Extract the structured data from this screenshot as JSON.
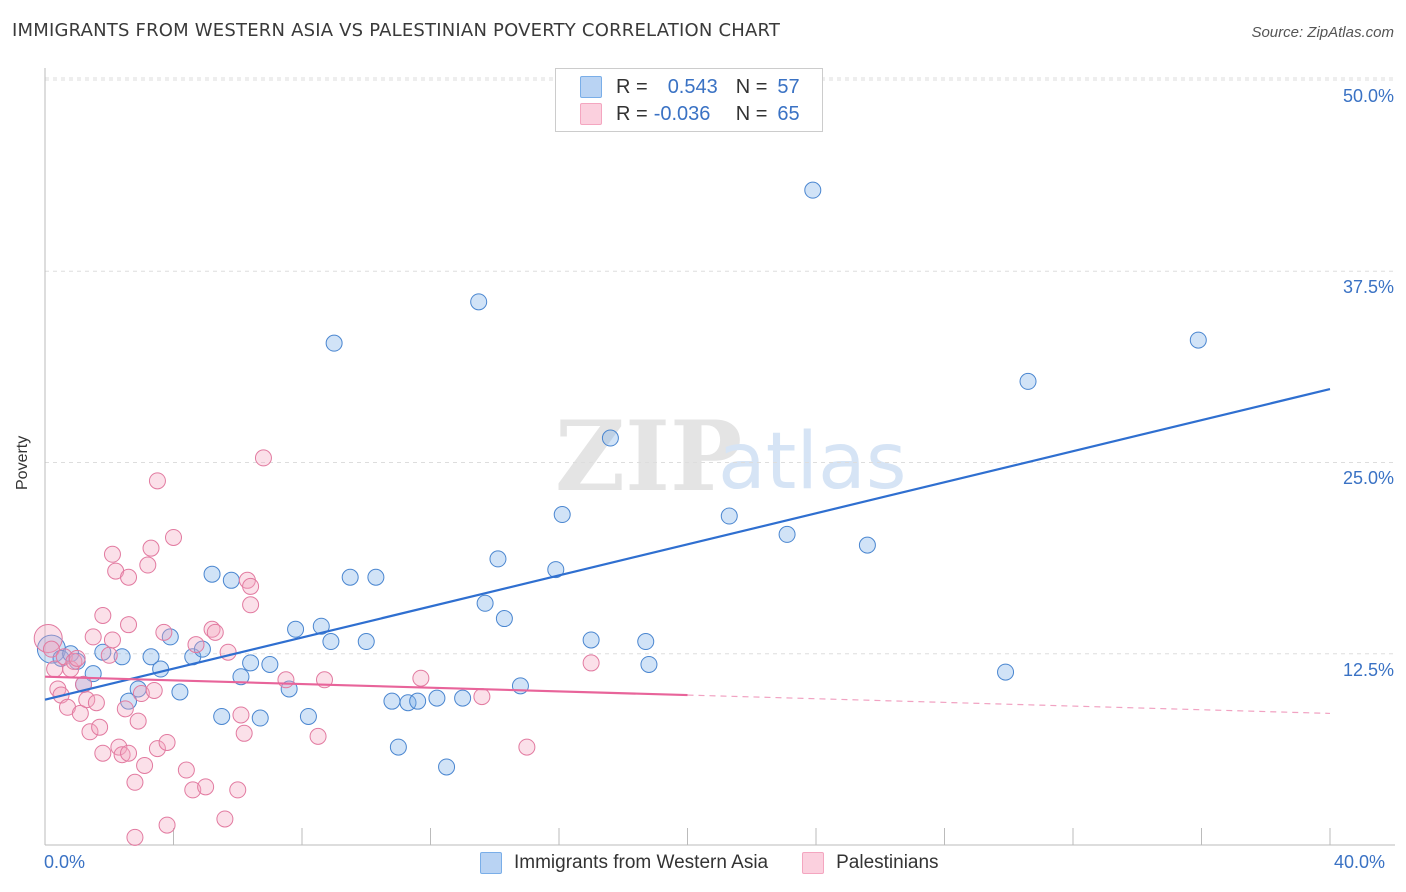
{
  "chart_data": {
    "type": "scatter",
    "title": "IMMIGRANTS FROM WESTERN ASIA VS PALESTINIAN POVERTY CORRELATION CHART",
    "source": "Source: ZipAtlas.com",
    "ylabel": "Poverty",
    "xlim": [
      0,
      40
    ],
    "ylim": [
      0,
      50
    ],
    "x_tick_labels": [
      "0.0%",
      "40.0%"
    ],
    "y_tick_labels": [
      "12.5%",
      "25.0%",
      "37.5%",
      "50.0%"
    ],
    "y_tick_values": [
      12.5,
      25.0,
      37.5,
      50.0
    ],
    "watermark": "ZIPatlas",
    "series": [
      {
        "name": "Immigrants from Western Asia",
        "color": "#7aaee8",
        "stroke": "#4a86d0",
        "line_color": "#2f6fd0",
        "R": "0.543",
        "N": "57",
        "trend": {
          "x": [
            0,
            40
          ],
          "y": [
            9.5,
            29.8
          ]
        },
        "points": [
          [
            0.2,
            12.8
          ],
          [
            0.5,
            12.2
          ],
          [
            0.8,
            12.5
          ],
          [
            1.0,
            12.0
          ],
          [
            1.2,
            10.5
          ],
          [
            1.5,
            11.2
          ],
          [
            1.8,
            12.6
          ],
          [
            2.4,
            12.3
          ],
          [
            2.6,
            9.4
          ],
          [
            2.9,
            10.2
          ],
          [
            3.3,
            12.3
          ],
          [
            3.6,
            11.5
          ],
          [
            3.9,
            13.6
          ],
          [
            4.2,
            10.0
          ],
          [
            4.6,
            12.3
          ],
          [
            4.9,
            12.8
          ],
          [
            5.2,
            17.7
          ],
          [
            5.5,
            8.4
          ],
          [
            5.8,
            17.3
          ],
          [
            6.1,
            11.0
          ],
          [
            6.4,
            11.9
          ],
          [
            6.7,
            8.3
          ],
          [
            7.0,
            11.8
          ],
          [
            7.6,
            10.2
          ],
          [
            7.8,
            14.1
          ],
          [
            8.2,
            8.4
          ],
          [
            8.6,
            14.3
          ],
          [
            8.9,
            13.3
          ],
          [
            9.0,
            32.8
          ],
          [
            9.5,
            17.5
          ],
          [
            10.0,
            13.3
          ],
          [
            10.3,
            17.5
          ],
          [
            10.8,
            9.4
          ],
          [
            11.0,
            6.4
          ],
          [
            11.3,
            9.3
          ],
          [
            11.6,
            9.4
          ],
          [
            12.2,
            9.6
          ],
          [
            12.5,
            5.1
          ],
          [
            13.0,
            9.6
          ],
          [
            13.5,
            35.5
          ],
          [
            13.7,
            15.8
          ],
          [
            14.1,
            18.7
          ],
          [
            14.3,
            14.8
          ],
          [
            14.8,
            10.4
          ],
          [
            15.9,
            18.0
          ],
          [
            16.1,
            21.6
          ],
          [
            17.0,
            13.4
          ],
          [
            17.6,
            26.6
          ],
          [
            18.7,
            13.3
          ],
          [
            18.8,
            11.8
          ],
          [
            21.3,
            21.5
          ],
          [
            23.1,
            20.3
          ],
          [
            23.9,
            42.8
          ],
          [
            25.6,
            19.6
          ],
          [
            29.9,
            11.3
          ],
          [
            30.6,
            30.3
          ],
          [
            35.9,
            33.0
          ]
        ]
      },
      {
        "name": "Palestinians",
        "color": "#f4a6c0",
        "stroke": "#e27aa0",
        "line_color": "#e8649a",
        "R": "-0.036",
        "N": "65",
        "trend": {
          "x": [
            0,
            20
          ],
          "y": [
            11.0,
            9.8
          ]
        },
        "trend_dashed": {
          "x": [
            20,
            40
          ],
          "y": [
            9.8,
            8.6
          ]
        },
        "points": [
          [
            0.1,
            13.5
          ],
          [
            0.2,
            12.8
          ],
          [
            0.3,
            11.5
          ],
          [
            0.4,
            10.2
          ],
          [
            0.5,
            9.8
          ],
          [
            0.6,
            12.3
          ],
          [
            0.7,
            9.0
          ],
          [
            0.8,
            11.5
          ],
          [
            0.9,
            12.0
          ],
          [
            1.0,
            12.2
          ],
          [
            1.1,
            8.6
          ],
          [
            1.2,
            10.5
          ],
          [
            1.3,
            9.5
          ],
          [
            1.4,
            7.4
          ],
          [
            1.5,
            13.6
          ],
          [
            1.6,
            9.3
          ],
          [
            1.7,
            7.7
          ],
          [
            1.8,
            6.0
          ],
          [
            1.8,
            15.0
          ],
          [
            2.0,
            12.4
          ],
          [
            2.1,
            13.4
          ],
          [
            2.1,
            19.0
          ],
          [
            2.2,
            17.9
          ],
          [
            2.3,
            6.4
          ],
          [
            2.4,
            5.9
          ],
          [
            2.5,
            8.9
          ],
          [
            2.6,
            6.0
          ],
          [
            2.6,
            17.5
          ],
          [
            2.6,
            14.4
          ],
          [
            2.8,
            4.1
          ],
          [
            2.8,
            0.5
          ],
          [
            2.9,
            8.1
          ],
          [
            3.1,
            5.2
          ],
          [
            3.0,
            9.9
          ],
          [
            3.2,
            18.3
          ],
          [
            3.3,
            19.4
          ],
          [
            3.4,
            10.1
          ],
          [
            3.5,
            6.3
          ],
          [
            3.5,
            23.8
          ],
          [
            3.7,
            13.9
          ],
          [
            3.8,
            6.7
          ],
          [
            3.8,
            1.3
          ],
          [
            4.0,
            20.1
          ],
          [
            4.4,
            4.9
          ],
          [
            4.6,
            3.6
          ],
          [
            4.7,
            13.1
          ],
          [
            5.0,
            3.8
          ],
          [
            5.2,
            14.1
          ],
          [
            5.3,
            13.9
          ],
          [
            5.6,
            1.7
          ],
          [
            5.7,
            12.6
          ],
          [
            6.0,
            3.6
          ],
          [
            6.1,
            8.5
          ],
          [
            6.2,
            7.3
          ],
          [
            6.3,
            17.3
          ],
          [
            6.4,
            15.7
          ],
          [
            6.4,
            16.9
          ],
          [
            6.8,
            25.3
          ],
          [
            7.5,
            10.8
          ],
          [
            8.5,
            7.1
          ],
          [
            8.7,
            10.8
          ],
          [
            11.7,
            10.9
          ],
          [
            13.6,
            9.7
          ],
          [
            15.0,
            6.4
          ],
          [
            17.0,
            11.9
          ]
        ]
      }
    ]
  },
  "legend": {
    "rows": [
      {
        "r_label": "R =",
        "r_value": "0.543",
        "n_label": "N =",
        "n_value": "57"
      },
      {
        "r_label": "R =",
        "r_value": "-0.036",
        "n_label": "N =",
        "n_value": "65"
      }
    ]
  },
  "bottom_legend": [
    "Immigrants from Western Asia",
    "Palestinians"
  ]
}
